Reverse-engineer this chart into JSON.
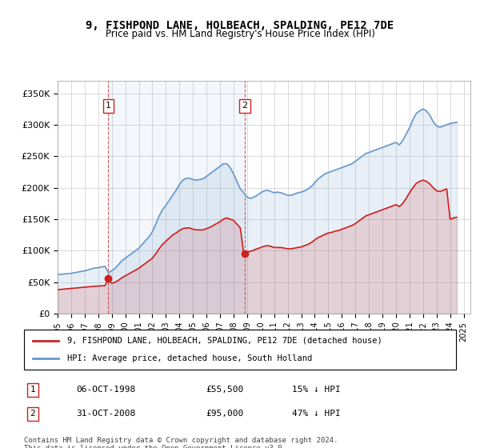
{
  "title": "9, FISHPOND LANE, HOLBEACH, SPALDING, PE12 7DE",
  "subtitle": "Price paid vs. HM Land Registry's House Price Index (HPI)",
  "title_fontsize": 11,
  "subtitle_fontsize": 9,
  "ylabel_ticks": [
    "£0",
    "£50K",
    "£100K",
    "£150K",
    "£200K",
    "£250K",
    "£300K",
    "£350K"
  ],
  "ytick_values": [
    0,
    50000,
    100000,
    150000,
    200000,
    250000,
    300000,
    350000
  ],
  "ylim": [
    0,
    370000
  ],
  "xlim_start": 1995.0,
  "xlim_end": 2025.5,
  "hpi_color": "#6699cc",
  "price_color": "#cc2222",
  "transaction_color": "#cc2222",
  "legend_label_red": "9, FISHPOND LANE, HOLBEACH, SPALDING, PE12 7DE (detached house)",
  "legend_label_blue": "HPI: Average price, detached house, South Holland",
  "transactions": [
    {
      "num": 1,
      "date": "06-OCT-1998",
      "price": 55500,
      "year": 1998.75,
      "label": "15% ↓ HPI"
    },
    {
      "num": 2,
      "date": "31-OCT-2008",
      "price": 95000,
      "year": 2008.83,
      "label": "47% ↓ HPI"
    }
  ],
  "footer": "Contains HM Land Registry data © Crown copyright and database right 2024.\nThis data is licensed under the Open Government Licence v3.0.",
  "hpi_data": {
    "years": [
      1995.0,
      1995.25,
      1995.5,
      1995.75,
      1996.0,
      1996.25,
      1996.5,
      1996.75,
      1997.0,
      1997.25,
      1997.5,
      1997.75,
      1998.0,
      1998.25,
      1998.5,
      1998.75,
      1999.0,
      1999.25,
      1999.5,
      1999.75,
      2000.0,
      2000.25,
      2000.5,
      2000.75,
      2001.0,
      2001.25,
      2001.5,
      2001.75,
      2002.0,
      2002.25,
      2002.5,
      2002.75,
      2003.0,
      2003.25,
      2003.5,
      2003.75,
      2004.0,
      2004.25,
      2004.5,
      2004.75,
      2005.0,
      2005.25,
      2005.5,
      2005.75,
      2006.0,
      2006.25,
      2006.5,
      2006.75,
      2007.0,
      2007.25,
      2007.5,
      2007.75,
      2008.0,
      2008.25,
      2008.5,
      2008.75,
      2009.0,
      2009.25,
      2009.5,
      2009.75,
      2010.0,
      2010.25,
      2010.5,
      2010.75,
      2011.0,
      2011.25,
      2011.5,
      2011.75,
      2012.0,
      2012.25,
      2012.5,
      2012.75,
      2013.0,
      2013.25,
      2013.5,
      2013.75,
      2014.0,
      2014.25,
      2014.5,
      2014.75,
      2015.0,
      2015.25,
      2015.5,
      2015.75,
      2016.0,
      2016.25,
      2016.5,
      2016.75,
      2017.0,
      2017.25,
      2017.5,
      2017.75,
      2018.0,
      2018.25,
      2018.5,
      2018.75,
      2019.0,
      2019.25,
      2019.5,
      2019.75,
      2020.0,
      2020.25,
      2020.5,
      2020.75,
      2021.0,
      2021.25,
      2021.5,
      2021.75,
      2022.0,
      2022.25,
      2022.5,
      2022.75,
      2023.0,
      2023.25,
      2023.5,
      2023.75,
      2024.0,
      2024.25,
      2024.5
    ],
    "values": [
      62000,
      62500,
      63000,
      63500,
      64000,
      65000,
      66000,
      67000,
      68000,
      69500,
      71000,
      72500,
      73000,
      74000,
      75000,
      65000,
      68000,
      72000,
      78000,
      84000,
      88000,
      92000,
      96000,
      100000,
      104000,
      110000,
      116000,
      122000,
      130000,
      142000,
      155000,
      165000,
      172000,
      180000,
      188000,
      196000,
      205000,
      212000,
      215000,
      215000,
      213000,
      212000,
      213000,
      214000,
      218000,
      222000,
      226000,
      230000,
      234000,
      238000,
      238000,
      232000,
      222000,
      210000,
      198000,
      192000,
      185000,
      183000,
      185000,
      188000,
      192000,
      195000,
      196000,
      194000,
      192000,
      193000,
      192000,
      190000,
      188000,
      188000,
      190000,
      192000,
      193000,
      195000,
      198000,
      202000,
      208000,
      214000,
      218000,
      222000,
      224000,
      226000,
      228000,
      230000,
      232000,
      234000,
      236000,
      238000,
      242000,
      246000,
      250000,
      254000,
      256000,
      258000,
      260000,
      262000,
      264000,
      266000,
      268000,
      270000,
      272000,
      268000,
      275000,
      285000,
      295000,
      308000,
      318000,
      322000,
      325000,
      322000,
      315000,
      305000,
      298000,
      296000,
      298000,
      300000,
      302000,
      303000,
      304000
    ]
  },
  "price_paid_data": {
    "years": [
      1995.0,
      1995.25,
      1995.5,
      1995.75,
      1996.0,
      1996.25,
      1996.5,
      1996.75,
      1997.0,
      1997.25,
      1997.5,
      1997.75,
      1998.0,
      1998.25,
      1998.5,
      1998.75,
      1999.0,
      1999.25,
      1999.5,
      1999.75,
      2000.0,
      2000.25,
      2000.5,
      2000.75,
      2001.0,
      2001.25,
      2001.5,
      2001.75,
      2002.0,
      2002.25,
      2002.5,
      2002.75,
      2003.0,
      2003.25,
      2003.5,
      2003.75,
      2004.0,
      2004.25,
      2004.5,
      2004.75,
      2005.0,
      2005.25,
      2005.5,
      2005.75,
      2006.0,
      2006.25,
      2006.5,
      2006.75,
      2007.0,
      2007.25,
      2007.5,
      2007.75,
      2008.0,
      2008.25,
      2008.5,
      2008.75,
      2009.0,
      2009.25,
      2009.5,
      2009.75,
      2010.0,
      2010.25,
      2010.5,
      2010.75,
      2011.0,
      2011.25,
      2011.5,
      2011.75,
      2012.0,
      2012.25,
      2012.5,
      2012.75,
      2013.0,
      2013.25,
      2013.5,
      2013.75,
      2014.0,
      2014.25,
      2014.5,
      2014.75,
      2015.0,
      2015.25,
      2015.5,
      2015.75,
      2016.0,
      2016.25,
      2016.5,
      2016.75,
      2017.0,
      2017.25,
      2017.5,
      2017.75,
      2018.0,
      2018.25,
      2018.5,
      2018.75,
      2019.0,
      2019.25,
      2019.5,
      2019.75,
      2020.0,
      2020.25,
      2020.5,
      2020.75,
      2021.0,
      2021.25,
      2021.5,
      2021.75,
      2022.0,
      2022.25,
      2022.5,
      2022.75,
      2023.0,
      2023.25,
      2023.5,
      2023.75,
      2024.0,
      2024.25,
      2024.5
    ],
    "values": [
      38000,
      38500,
      39000,
      39500,
      40000,
      40500,
      41000,
      41500,
      42000,
      42500,
      43000,
      43500,
      43800,
      44200,
      44500,
      55500,
      48000,
      50000,
      53000,
      57000,
      60000,
      63000,
      66000,
      69000,
      72000,
      76000,
      80000,
      84000,
      88000,
      95000,
      103000,
      110000,
      115000,
      120000,
      125000,
      128000,
      132000,
      135000,
      136000,
      136000,
      134000,
      133000,
      133000,
      133000,
      135000,
      137000,
      140000,
      143000,
      146000,
      150000,
      152000,
      150000,
      148000,
      142000,
      136000,
      95000,
      98000,
      99000,
      101000,
      103000,
      105000,
      107000,
      108000,
      107000,
      105000,
      105000,
      105000,
      104000,
      103000,
      103000,
      104000,
      105000,
      106000,
      108000,
      110000,
      113000,
      117000,
      121000,
      123000,
      126000,
      128000,
      129000,
      131000,
      132000,
      134000,
      136000,
      138000,
      140000,
      143000,
      147000,
      151000,
      155000,
      157000,
      159000,
      161000,
      163000,
      165000,
      167000,
      169000,
      171000,
      173000,
      170000,
      175000,
      183000,
      192000,
      200000,
      207000,
      210000,
      212000,
      210000,
      206000,
      200000,
      195000,
      194000,
      196000,
      198000,
      150000,
      152000,
      153000
    ]
  }
}
